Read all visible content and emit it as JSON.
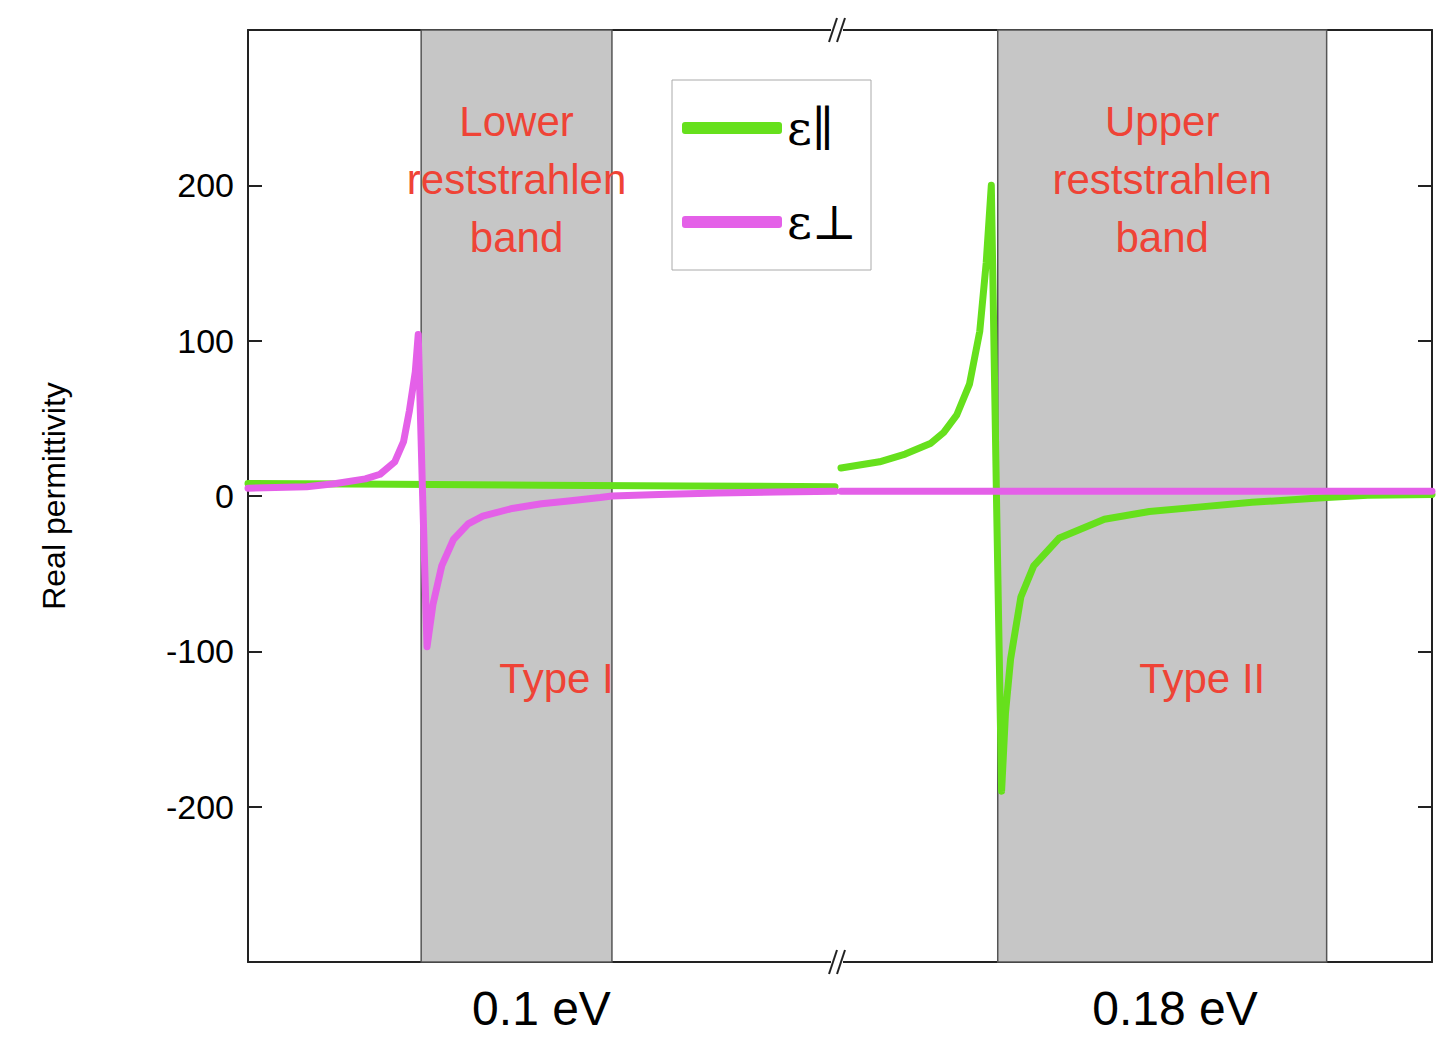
{
  "chart_data": [
    {
      "type": "line",
      "y_label": "Real permittivity",
      "xlim": [
        0.09,
        0.11
      ],
      "xticks": [
        {
          "value": 0.1,
          "label": "0.1 eV"
        }
      ],
      "ylim": [
        -300,
        300
      ],
      "yticks": [
        -200,
        -100,
        0,
        100,
        200
      ],
      "legend": "top",
      "band": {
        "range": [
          0.0959,
          0.1024
        ],
        "label": "Lower reststrahlen band",
        "note": "Type I"
      },
      "series": [
        {
          "name": "ε∥",
          "color": "#66e01c",
          "x": [
            0.09,
            0.095,
            0.1,
            0.105,
            0.11
          ],
          "values": [
            8,
            7.5,
            7,
            6.5,
            6
          ]
        },
        {
          "name": "ε⊥",
          "color": "#e460e8",
          "x": [
            0.09,
            0.092,
            0.093,
            0.094,
            0.0945,
            0.095,
            0.0953,
            0.0955,
            0.0957,
            0.0958,
            0.09595,
            0.0961,
            0.0963,
            0.0966,
            0.097,
            0.0975,
            0.098,
            0.099,
            0.1,
            0.101,
            0.102,
            0.1024,
            0.104,
            0.106,
            0.108,
            0.11
          ],
          "values": [
            5,
            6,
            8,
            11,
            14,
            22,
            35,
            55,
            80,
            104,
            0,
            -97,
            -70,
            -45,
            -28,
            -18,
            -13,
            -8,
            -5,
            -3,
            -1,
            0,
            1,
            2,
            2.5,
            3
          ]
        }
      ]
    },
    {
      "type": "line",
      "xlim": [
        0.154,
        0.2
      ],
      "xticks": [
        {
          "value": 0.18,
          "label": "0.18 eV"
        }
      ],
      "ylim": [
        -300,
        300
      ],
      "yticks": [
        -200,
        -100,
        0,
        100,
        200
      ],
      "tick_labels": "x",
      "band": {
        "range": [
          0.1662,
          0.1918
        ],
        "label": "Upper reststrahlen band",
        "note": "Type II"
      },
      "series": [
        {
          "name": "ε∥",
          "color": "#66e01c",
          "x": [
            0.154,
            0.157,
            0.159,
            0.161,
            0.162,
            0.163,
            0.164,
            0.1648,
            0.1653,
            0.1657,
            0.1661,
            0.1665,
            0.1668,
            0.1672,
            0.168,
            0.169,
            0.171,
            0.1745,
            0.178,
            0.182,
            0.186,
            0.19,
            0.1918,
            0.195,
            0.2
          ],
          "values": [
            18,
            22,
            27,
            34,
            41,
            52,
            72,
            106,
            150,
            200,
            0,
            -190,
            -140,
            -105,
            -65,
            -45,
            -27,
            -15,
            -10,
            -7,
            -4,
            -2,
            -1,
            0.5,
            1
          ]
        },
        {
          "name": "ε⊥",
          "color": "#e460e8",
          "x": [
            0.154,
            0.2
          ],
          "values": [
            3,
            3
          ]
        }
      ]
    }
  ]
}
